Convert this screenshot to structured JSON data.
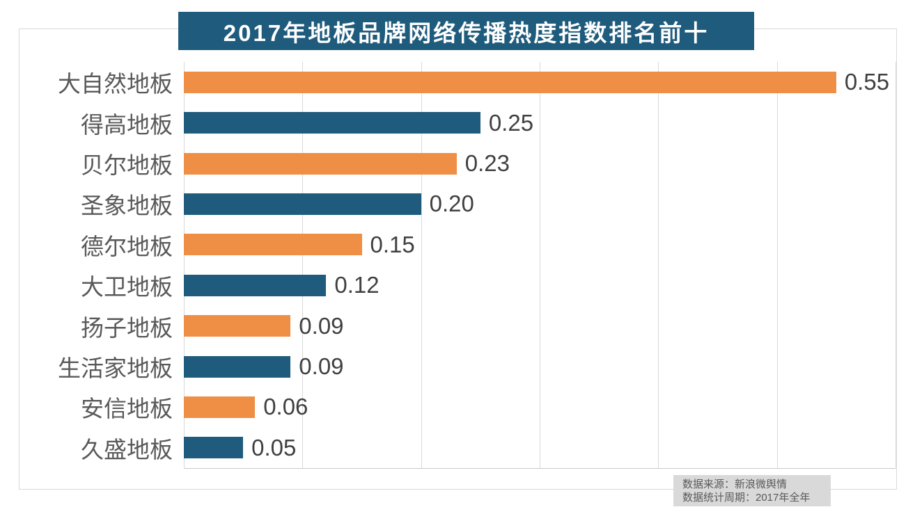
{
  "chart_data": {
    "type": "bar",
    "orientation": "horizontal",
    "title": "2017年地板品牌网络传播热度指数排名前十",
    "categories": [
      "大自然地板",
      "得高地板",
      "贝尔地板",
      "圣象地板",
      "德尔地板",
      "大卫地板",
      "扬子地板",
      "生活家地板",
      "安信地板",
      "久盛地板"
    ],
    "values": [
      0.55,
      0.25,
      0.23,
      0.2,
      0.15,
      0.12,
      0.09,
      0.09,
      0.06,
      0.05
    ],
    "value_labels": [
      "0.55",
      "0.25",
      "0.23",
      "0.20",
      "0.15",
      "0.12",
      "0.09",
      "0.09",
      "0.06",
      "0.05"
    ],
    "xlim": [
      0,
      0.6
    ],
    "grid_step": 0.1,
    "grid": "vertical-lines-on",
    "legend": "none",
    "xlabel": "",
    "ylabel": ""
  },
  "colors": {
    "bar_orange": "#EF8E45",
    "bar_teal": "#1F5B7C",
    "title_banner_bg": "#1F5B7C",
    "title_text": "#FFFFFF",
    "category_label": "#595959",
    "value_label": "#404040",
    "gridline": "#D9D9D9",
    "frame_border": "#D9D9D9",
    "source_box_bg": "#D9D9D9",
    "source_text": "#595959"
  },
  "source_note": {
    "line1": "数据来源：新浪微舆情",
    "line2": "数据统计周期：2017年全年"
  }
}
